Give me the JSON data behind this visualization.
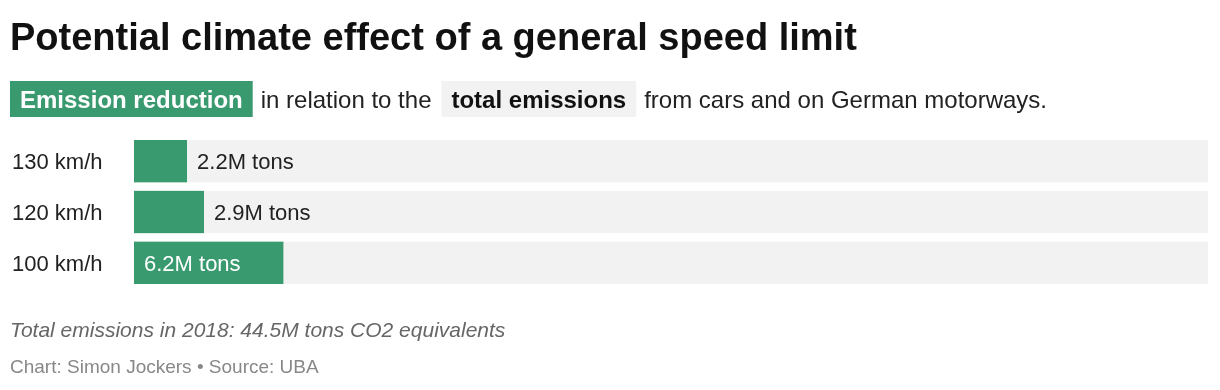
{
  "chart_data": {
    "type": "bar",
    "orientation": "horizontal",
    "stacked": true,
    "title": "Potential climate effect of a general speed limit",
    "categories": [
      "130 km/h",
      "120 km/h",
      "100 km/h"
    ],
    "series": [
      {
        "name": "Emission reduction",
        "color": "#3a9a6f",
        "values": [
          2.2,
          2.9,
          6.2
        ],
        "value_labels": [
          "2.2M tons",
          "2.9M tons",
          "6.2M tons"
        ]
      },
      {
        "name": "total emissions",
        "color": "#f2f2f2",
        "values": [
          42.3,
          41.6,
          38.3
        ]
      }
    ],
    "xlim": [
      0,
      44.5
    ],
    "legend": "top",
    "tick_labels": "y",
    "annotations": [
      "in relation to the",
      "from cars and on German motorways.",
      "Total emissions in 2018: 44.5M tons CO2 equivalents",
      "Chart: Simon Jockers • Source: UBA"
    ]
  }
}
